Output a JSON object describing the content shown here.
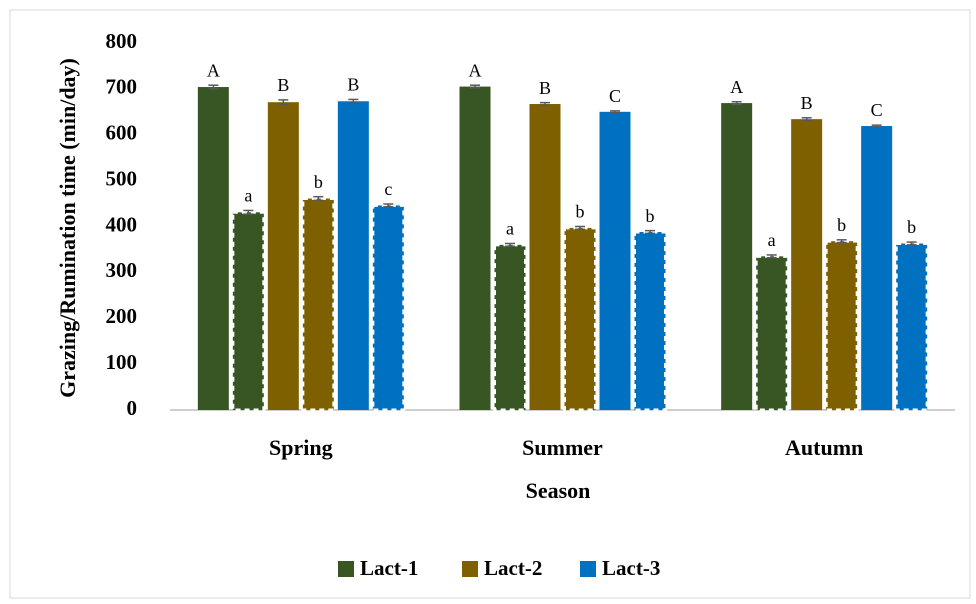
{
  "chart_data": {
    "type": "bar",
    "y_label": "Grazing/Rumination time (min/day)",
    "x_label": "Season",
    "categories": [
      "Spring",
      "Summer",
      "Autumn"
    ],
    "ylim": [
      0,
      800
    ],
    "yticks": [
      0,
      100,
      200,
      300,
      400,
      500,
      600,
      700,
      800
    ],
    "grid": false,
    "legend": "bottom",
    "series": [
      {
        "name": "Lact-1",
        "color": "#375623",
        "grazing": [
          704,
          705,
          669
        ],
        "grazing_error": [
          4,
          3,
          3
        ],
        "grazing_letters": [
          "A",
          "A",
          "A"
        ],
        "rumination": [
          431,
          360,
          335
        ],
        "rumination_error": [
          4,
          3,
          3
        ],
        "rumination_letters": [
          "a",
          "a",
          "a"
        ]
      },
      {
        "name": "Lact-2",
        "color": "#7f6000",
        "grazing": [
          671,
          667,
          634
        ],
        "grazing_error": [
          5,
          3,
          3
        ],
        "grazing_letters": [
          "B",
          "B",
          "B"
        ],
        "rumination": [
          461,
          397,
          368
        ],
        "rumination_error": [
          4,
          3,
          3
        ],
        "rumination_letters": [
          "b",
          "b",
          "b"
        ]
      },
      {
        "name": "Lact-3",
        "color": "#0070c0",
        "grazing": [
          673,
          650,
          619
        ],
        "grazing_error": [
          4,
          2,
          2
        ],
        "grazing_letters": [
          "B",
          "C",
          "C"
        ],
        "rumination": [
          446,
          388,
          363
        ],
        "rumination_error": [
          3,
          3,
          3
        ],
        "rumination_letters": [
          "c",
          "b",
          "b"
        ]
      }
    ]
  }
}
